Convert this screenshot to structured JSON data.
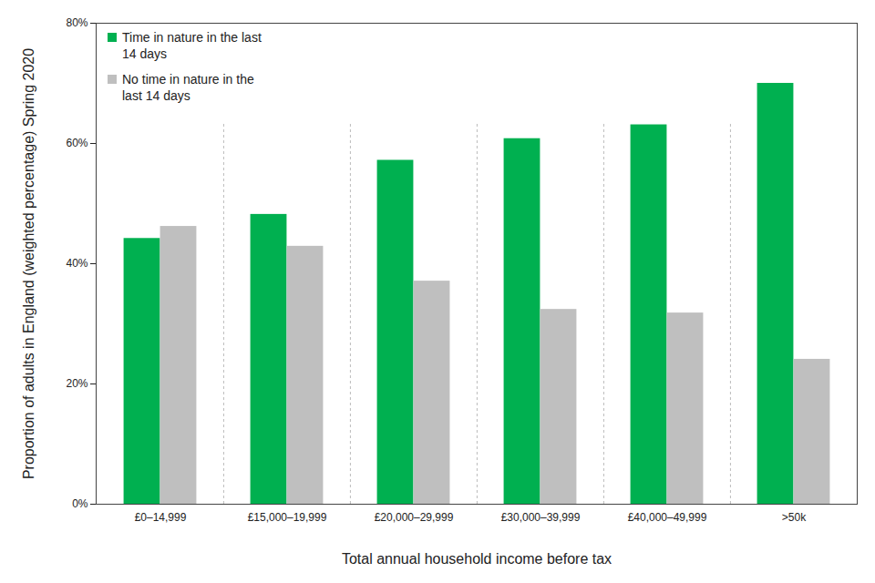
{
  "chart_data": {
    "type": "bar",
    "categories": [
      "£0–14,999",
      "£15,000–19,999",
      "£20,000–29,999",
      "£30,000–39,999",
      "£40,000–49,999",
      ">50k"
    ],
    "series": [
      {
        "name": "Time in nature in the last 14 days",
        "color": "#00b050",
        "values": [
          44.2,
          48.2,
          57.2,
          60.8,
          63.1,
          70.0
        ]
      },
      {
        "name": "No time in nature in the last 14 days",
        "color": "#bfbfbf",
        "values": [
          46.2,
          42.9,
          37.1,
          32.4,
          31.8,
          24.1
        ]
      }
    ],
    "xlabel": "Total annual household income before tax",
    "ylabel": "Proportion of adults in England (weighted percentage) Spring 2020",
    "ylim": [
      0,
      80
    ],
    "yticks": [
      {
        "value": 0,
        "label": "0%"
      },
      {
        "value": 20,
        "label": "20%"
      },
      {
        "value": 40,
        "label": "40%"
      },
      {
        "value": 60,
        "label": "60%"
      },
      {
        "value": 80,
        "label": "80%"
      }
    ],
    "legend": "top-left",
    "grid": false
  }
}
